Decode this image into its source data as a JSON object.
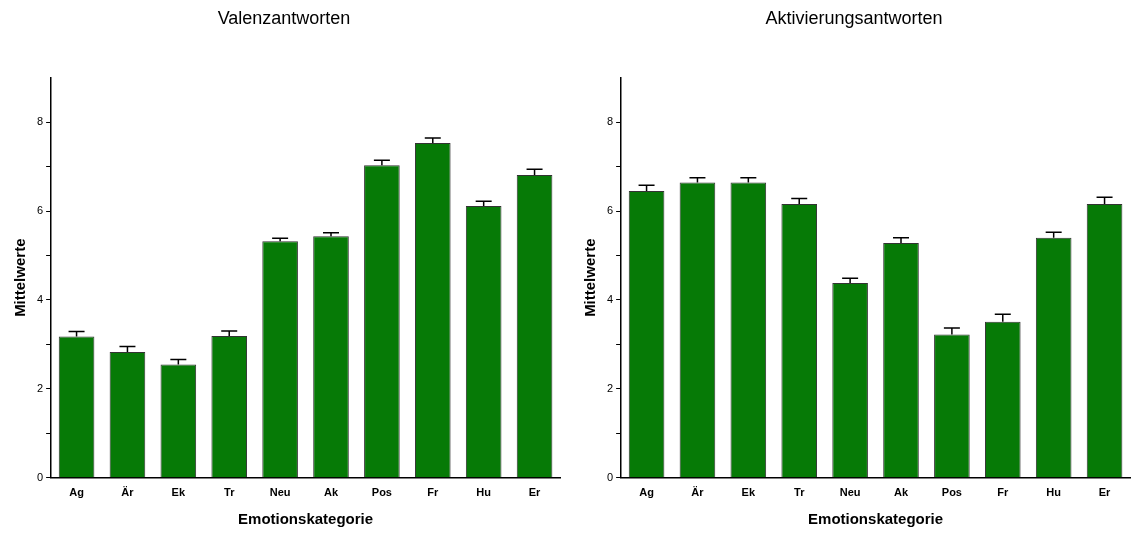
{
  "chart_data": [
    {
      "type": "bar",
      "title": "Valenzantworten",
      "xlabel": "Emotionskategorie",
      "ylabel": "Mittelwerte",
      "categories": [
        "Ag",
        "Är",
        "Ek",
        "Tr",
        "Neu",
        "Ak",
        "Pos",
        "Fr",
        "Hu",
        "Er"
      ],
      "values": [
        3.18,
        2.83,
        2.55,
        3.19,
        5.32,
        5.43,
        7.03,
        7.53,
        6.11,
        6.81
      ],
      "errors": [
        [
          3.18,
          3.29
        ],
        [
          2.83,
          2.95
        ],
        [
          2.55,
          2.66
        ],
        [
          3.19,
          3.3
        ],
        [
          5.32,
          5.39
        ],
        [
          5.43,
          5.51
        ],
        [
          7.03,
          7.14
        ],
        [
          7.53,
          7.64
        ],
        [
          6.11,
          6.22
        ],
        [
          6.81,
          6.94
        ]
      ],
      "color": "#067a06",
      "ylim": [
        0,
        9
      ],
      "yticks": [
        0,
        {
          "value": 1,
          "label": null
        },
        2,
        {
          "value": 3,
          "label": null
        },
        4,
        {
          "value": 5,
          "label": null
        },
        6,
        {
          "value": 7,
          "label": null
        },
        8
      ],
      "grid": false,
      "legend": false
    },
    {
      "type": "bar",
      "title": "Aktivierungsantworten",
      "xlabel": "Emotionskategorie",
      "ylabel": "Mittelwerte",
      "categories": [
        "Ag",
        "Är",
        "Ek",
        "Tr",
        "Neu",
        "Ak",
        "Pos",
        "Fr",
        "Hu",
        "Er"
      ],
      "values": [
        6.45,
        6.64,
        6.64,
        6.16,
        4.38,
        5.28,
        3.22,
        3.51,
        5.4,
        6.16
      ],
      "errors": [
        [
          6.45,
          6.58
        ],
        [
          6.64,
          6.75
        ],
        [
          6.64,
          6.75
        ],
        [
          6.16,
          6.28
        ],
        [
          4.38,
          4.49
        ],
        [
          5.28,
          5.4
        ],
        [
          3.22,
          3.37
        ],
        [
          3.51,
          3.68
        ],
        [
          5.4,
          5.52
        ],
        [
          6.16,
          6.31
        ]
      ],
      "color": "#067a06",
      "ylim": [
        0,
        9
      ],
      "yticks": [
        0,
        {
          "value": 1,
          "label": null
        },
        2,
        {
          "value": 3,
          "label": null
        },
        4,
        {
          "value": 5,
          "label": null
        },
        6,
        {
          "value": 7,
          "label": null
        },
        8
      ],
      "grid": false,
      "legend": false
    }
  ]
}
